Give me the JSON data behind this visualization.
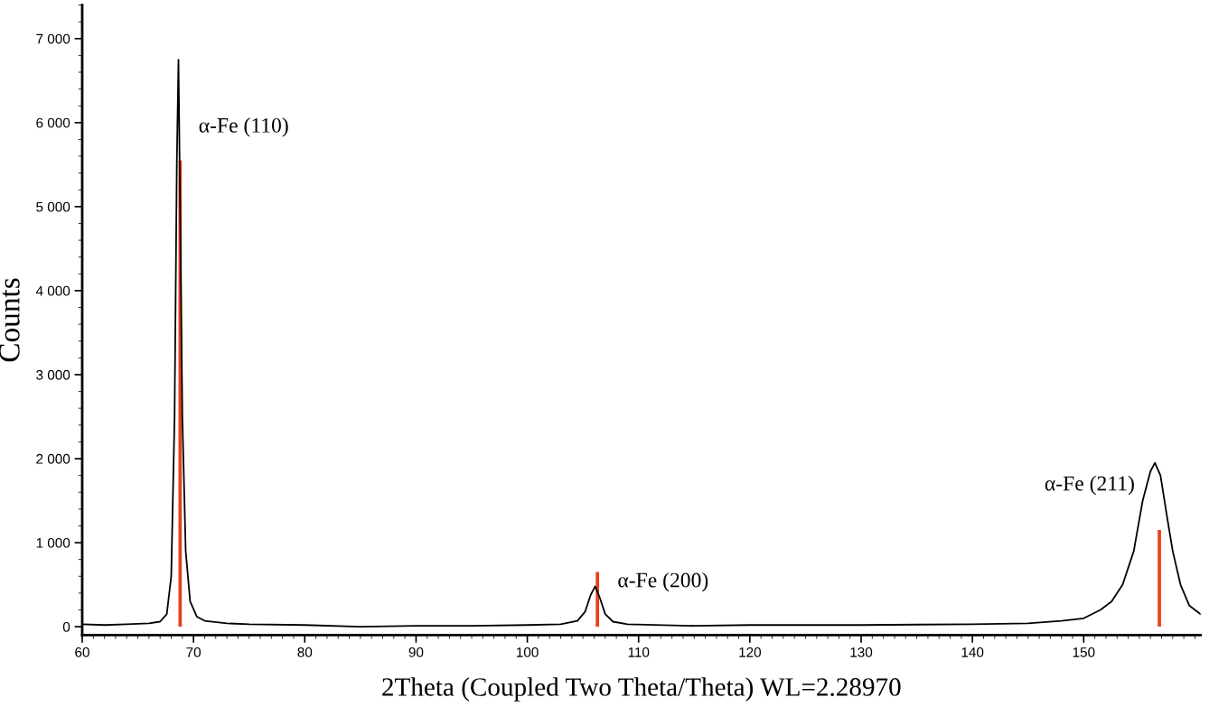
{
  "chart_data": {
    "type": "line",
    "xlabel": "2Theta (Coupled Two Theta/Theta) WL=2.28970",
    "ylabel": "Counts",
    "xlim": [
      60,
      160.5
    ],
    "ylim": [
      -100,
      7400
    ],
    "xticks": [
      60,
      70,
      80,
      90,
      100,
      110,
      120,
      130,
      140,
      150
    ],
    "yticks": [
      {
        "value": 0,
        "label": "0"
      },
      {
        "value": 1000,
        "label": "1 000"
      },
      {
        "value": 2000,
        "label": "2 000"
      },
      {
        "value": 3000,
        "label": "3 000"
      },
      {
        "value": 4000,
        "label": "4 000"
      },
      {
        "value": 5000,
        "label": "5 000"
      },
      {
        "value": 6000,
        "label": "6 000"
      },
      {
        "value": 7000,
        "label": "7 000"
      }
    ],
    "grid": false,
    "marker": "none",
    "line_style": "solid",
    "series": [
      {
        "color": "#000000",
        "x": [
          60,
          62,
          64,
          66,
          67,
          67.6,
          68,
          68.3,
          68.5,
          68.65,
          68.8,
          69.0,
          69.3,
          69.7,
          70.3,
          71,
          73,
          75,
          80,
          85,
          90,
          95,
          100,
          103,
          104.5,
          105.2,
          105.7,
          106.1,
          106.5,
          107,
          107.7,
          109,
          115,
          120,
          130,
          140,
          145,
          148,
          150,
          151.5,
          152.5,
          153.5,
          154.5,
          155.3,
          156.0,
          156.4,
          156.9,
          157.5,
          158,
          158.7,
          159.5,
          160,
          160.5
        ],
        "values": [
          30,
          20,
          30,
          40,
          60,
          150,
          600,
          2500,
          5500,
          6750,
          5000,
          2500,
          900,
          300,
          120,
          70,
          40,
          30,
          20,
          0,
          10,
          10,
          20,
          30,
          70,
          180,
          380,
          480,
          350,
          150,
          60,
          30,
          10,
          20,
          20,
          30,
          40,
          70,
          100,
          200,
          300,
          500,
          900,
          1500,
          1850,
          1950,
          1800,
          1300,
          900,
          500,
          250,
          200,
          150
        ]
      },
      {
        "type": "bar",
        "color": "#e8401c",
        "x": [
          68.8,
          106.3,
          156.8
        ],
        "values": [
          5550,
          650,
          1150
        ]
      }
    ],
    "annotations": [
      {
        "text": "α-Fe (110)",
        "x": 68.65,
        "y": 6750
      },
      {
        "text": "α-Fe (200)",
        "x": 106.3,
        "y": 650
      },
      {
        "text": "α-Fe (211)",
        "x": 156.4,
        "y": 1950
      }
    ]
  }
}
